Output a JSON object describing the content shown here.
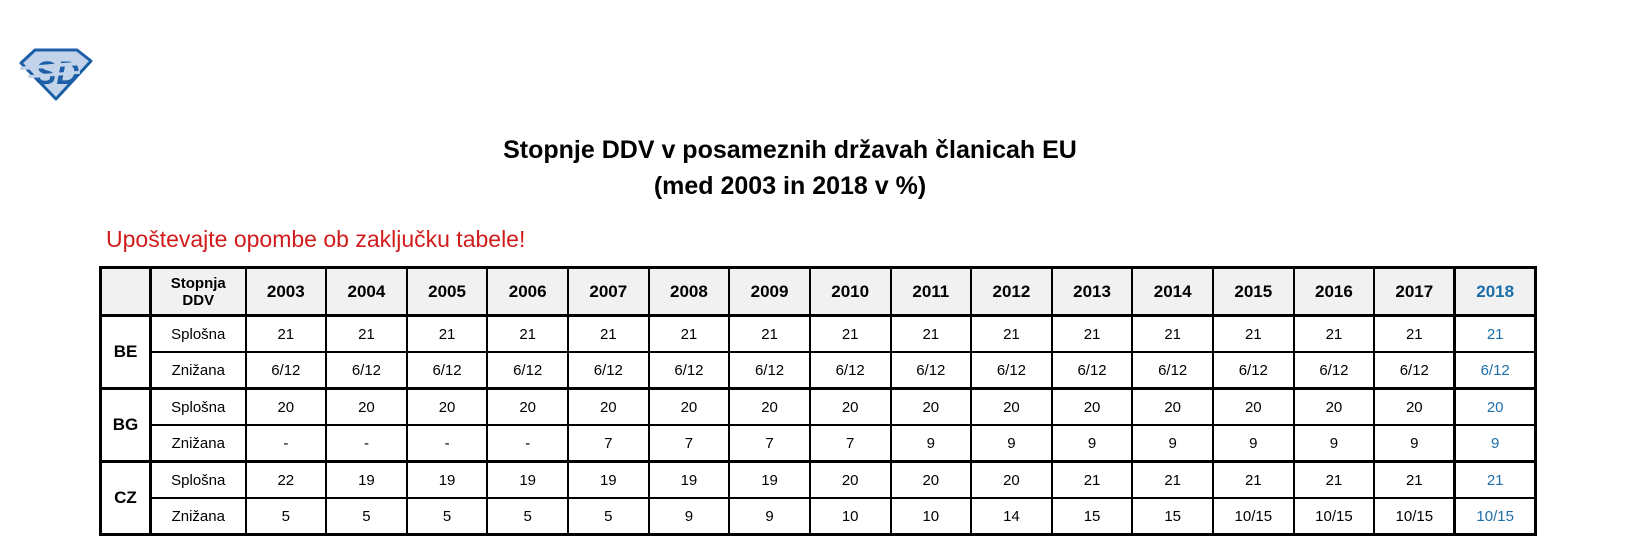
{
  "logo": {
    "name": "sd-diamond-logo",
    "letters": "SD"
  },
  "title": {
    "line1": "Stopnje DDV v posameznih državah članicah EU",
    "line2": "(med 2003 in 2018 v %)"
  },
  "note": "Upoštevajte opombe ob zaključku tabele!",
  "table": {
    "rate_header_line1": "Stopnja",
    "rate_header_line2": "DDV",
    "years": [
      "2003",
      "2004",
      "2005",
      "2006",
      "2007",
      "2008",
      "2009",
      "2010",
      "2011",
      "2012",
      "2013",
      "2014",
      "2015",
      "2016",
      "2017",
      "2018"
    ],
    "highlight_year": "2018",
    "countries": [
      {
        "code": "BE",
        "general_label": "Splošna",
        "reduced_label": "Znižana",
        "general": [
          "21",
          "21",
          "21",
          "21",
          "21",
          "21",
          "21",
          "21",
          "21",
          "21",
          "21",
          "21",
          "21",
          "21",
          "21",
          "21"
        ],
        "reduced": [
          "6/12",
          "6/12",
          "6/12",
          "6/12",
          "6/12",
          "6/12",
          "6/12",
          "6/12",
          "6/12",
          "6/12",
          "6/12",
          "6/12",
          "6/12",
          "6/12",
          "6/12",
          "6/12"
        ]
      },
      {
        "code": "BG",
        "general_label": "Splošna",
        "reduced_label": "Znižana",
        "general": [
          "20",
          "20",
          "20",
          "20",
          "20",
          "20",
          "20",
          "20",
          "20",
          "20",
          "20",
          "20",
          "20",
          "20",
          "20",
          "20"
        ],
        "reduced": [
          "-",
          "-",
          "-",
          "-",
          "7",
          "7",
          "7",
          "7",
          "9",
          "9",
          "9",
          "9",
          "9",
          "9",
          "9",
          "9"
        ]
      },
      {
        "code": "CZ",
        "general_label": "Splošna",
        "reduced_label": "Znižana",
        "general": [
          "22",
          "19",
          "19",
          "19",
          "19",
          "19",
          "19",
          "20",
          "20",
          "20",
          "21",
          "21",
          "21",
          "21",
          "21",
          "21"
        ],
        "reduced": [
          "5",
          "5",
          "5",
          "5",
          "5",
          "9",
          "9",
          "10",
          "10",
          "14",
          "15",
          "15",
          "10/15",
          "10/15",
          "10/15",
          "10/15"
        ]
      }
    ]
  },
  "colors": {
    "accent_blue": "#1c6ea9",
    "note_red": "#d11c1c",
    "header_bg": "#f1f1f1",
    "border_black": "#000000",
    "logo_stroke": "#1c5fa8",
    "logo_fill": "#c3d4ea"
  }
}
